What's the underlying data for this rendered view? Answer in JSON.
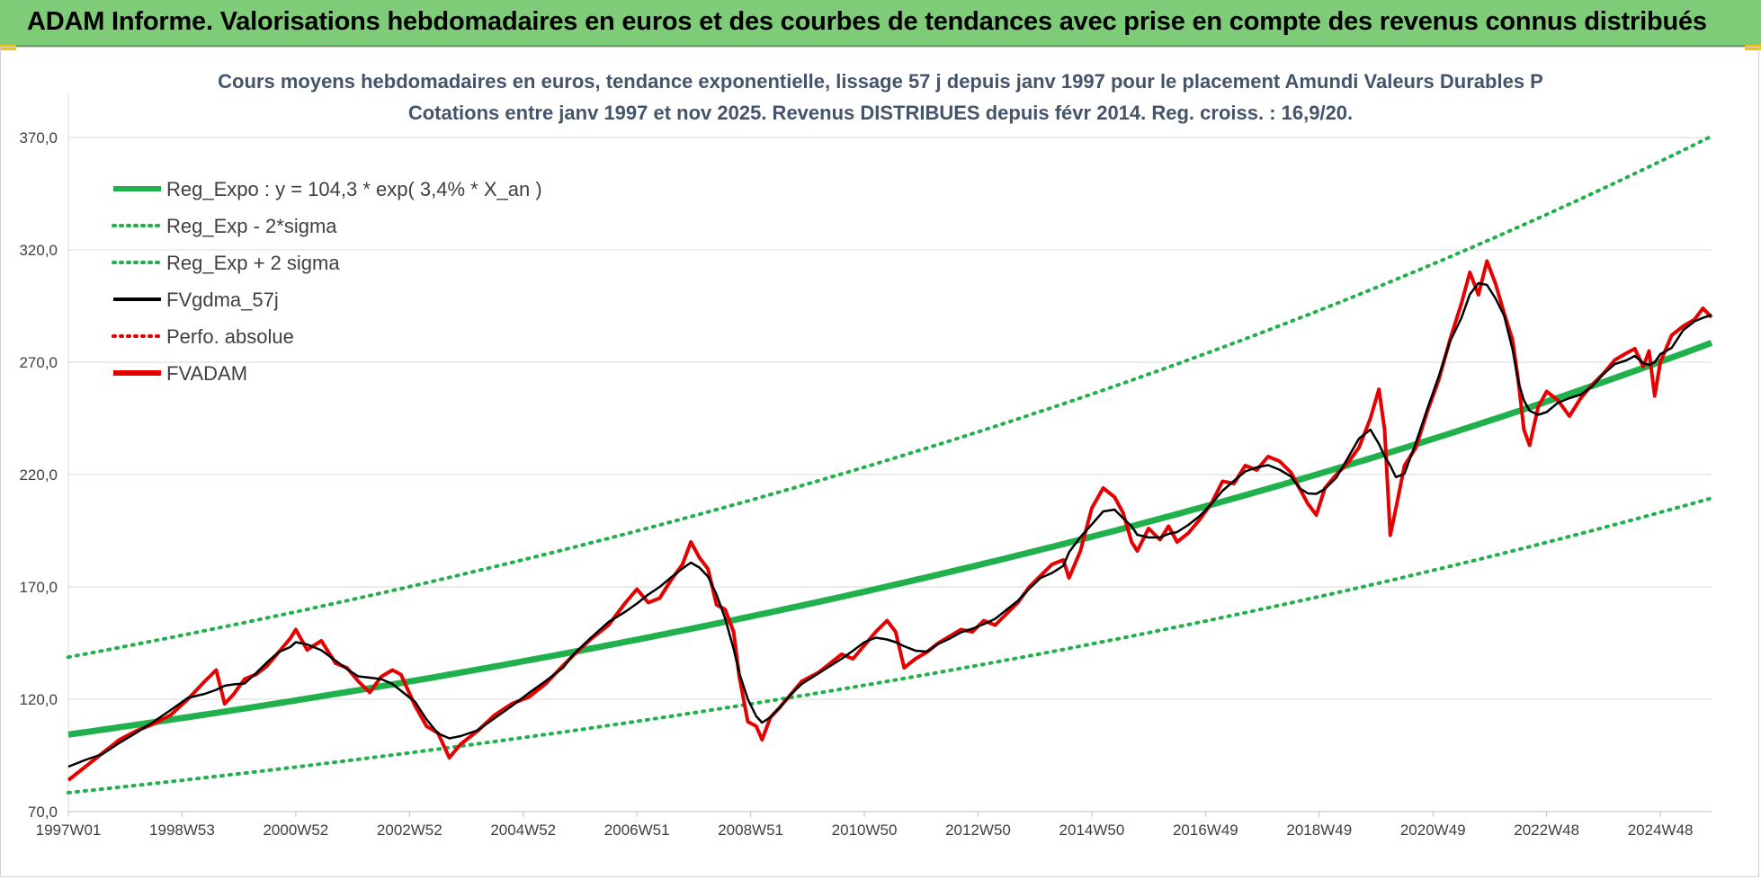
{
  "banner": {
    "title": "ADAM Informe. Valorisations hebdomadaires en euros et des courbes de tendances avec prise en compte des revenus connus distribués"
  },
  "colors": {
    "banner_bg": "#7ecb78",
    "trend": "#21b14c",
    "sigma": "#21b14c",
    "smoothed": "#000000",
    "perf": "#e60000",
    "fvadam": "#e60000",
    "grid": "#d9d9d9"
  },
  "chart_data": {
    "type": "line",
    "title": "Cours moyens hebdomadaires en euros, tendance exponentielle, lissage 57 j depuis janv 1997 pour le placement Amundi Valeurs Durables P",
    "subtitle": "Cotations entre janv 1997 et nov 2025. Revenus DISTRIBUES depuis févr 2014. Reg. croiss. : 16,9/20.",
    "xlabel": "",
    "ylabel": "",
    "x_range": [
      1997.0,
      2025.9
    ],
    "ylim": [
      70,
      390
    ],
    "y_ticks": [
      "70,0",
      "120,0",
      "170,0",
      "220,0",
      "270,0",
      "320,0",
      "370,0"
    ],
    "y_tick_values": [
      70,
      120,
      170,
      220,
      270,
      320,
      370
    ],
    "x_ticks": [
      "1997W01",
      "1998W53",
      "2000W52",
      "2002W52",
      "2004W52",
      "2006W51",
      "2008W51",
      "2010W50",
      "2012W50",
      "2014W50",
      "2016W49",
      "2018W49",
      "2020W49",
      "2022W48",
      "2024W48"
    ],
    "x_tick_values": [
      1997.0,
      1999.0,
      2001.0,
      2003.0,
      2005.0,
      2007.0,
      2009.0,
      2011.0,
      2013.0,
      2015.0,
      2017.0,
      2019.0,
      2021.0,
      2023.0,
      2025.0
    ],
    "grid": true,
    "legend_position": "top-left",
    "regression": {
      "a": 104.3,
      "rate": 0.034,
      "sigma_factor": 1.33
    },
    "legend": [
      {
        "label": "Reg_Expo : y = 104,3 * exp( 3,4% *  X_an )",
        "style": "solid-thick",
        "color": "#21b14c"
      },
      {
        "label": "Reg_Exp - 2*sigma",
        "style": "dotted",
        "color": "#21b14c"
      },
      {
        "label": "Reg_Exp + 2 sigma",
        "style": "dotted",
        "color": "#21b14c"
      },
      {
        "label": "FVgdma_57j",
        "style": "solid",
        "color": "#000000"
      },
      {
        "label": "Perfo. absolue",
        "style": "dotted",
        "color": "#e60000"
      },
      {
        "label": "FVADAM",
        "style": "solid-thick",
        "color": "#e60000"
      }
    ],
    "series": [
      {
        "name": "FVADAM",
        "points": [
          [
            1997.0,
            84
          ],
          [
            1997.3,
            90
          ],
          [
            1997.6,
            96
          ],
          [
            1997.9,
            102
          ],
          [
            1998.2,
            106
          ],
          [
            1998.5,
            109
          ],
          [
            1998.8,
            113
          ],
          [
            1999.1,
            120
          ],
          [
            1999.4,
            128
          ],
          [
            1999.6,
            133
          ],
          [
            1999.75,
            118
          ],
          [
            1999.9,
            122
          ],
          [
            2000.1,
            129
          ],
          [
            2000.3,
            131
          ],
          [
            2000.5,
            135
          ],
          [
            2000.7,
            141
          ],
          [
            2000.9,
            147
          ],
          [
            2001.0,
            151
          ],
          [
            2001.2,
            142
          ],
          [
            2001.45,
            146
          ],
          [
            2001.7,
            136
          ],
          [
            2001.9,
            134
          ],
          [
            2002.1,
            128
          ],
          [
            2002.3,
            123
          ],
          [
            2002.5,
            130
          ],
          [
            2002.7,
            133
          ],
          [
            2002.85,
            131
          ],
          [
            2003.1,
            117
          ],
          [
            2003.3,
            108
          ],
          [
            2003.5,
            105
          ],
          [
            2003.7,
            94
          ],
          [
            2003.9,
            100
          ],
          [
            2004.2,
            106
          ],
          [
            2004.5,
            113
          ],
          [
            2004.8,
            118
          ],
          [
            2005.1,
            121
          ],
          [
            2005.4,
            127
          ],
          [
            2005.7,
            135
          ],
          [
            2005.9,
            140
          ],
          [
            2006.2,
            147
          ],
          [
            2006.5,
            153
          ],
          [
            2006.8,
            163
          ],
          [
            2007.0,
            169
          ],
          [
            2007.2,
            163
          ],
          [
            2007.4,
            165
          ],
          [
            2007.6,
            173
          ],
          [
            2007.8,
            180
          ],
          [
            2007.95,
            190
          ],
          [
            2008.1,
            183
          ],
          [
            2008.25,
            178
          ],
          [
            2008.4,
            162
          ],
          [
            2008.55,
            160
          ],
          [
            2008.7,
            150
          ],
          [
            2008.8,
            130
          ],
          [
            2008.95,
            110
          ],
          [
            2009.1,
            108
          ],
          [
            2009.2,
            102
          ],
          [
            2009.35,
            112
          ],
          [
            2009.5,
            116
          ],
          [
            2009.7,
            122
          ],
          [
            2009.9,
            128
          ],
          [
            2010.2,
            132
          ],
          [
            2010.4,
            136
          ],
          [
            2010.6,
            140
          ],
          [
            2010.8,
            138
          ],
          [
            2011.0,
            144
          ],
          [
            2011.2,
            150
          ],
          [
            2011.4,
            155
          ],
          [
            2011.55,
            150
          ],
          [
            2011.7,
            134
          ],
          [
            2011.9,
            138
          ],
          [
            2012.1,
            141
          ],
          [
            2012.3,
            145
          ],
          [
            2012.5,
            148
          ],
          [
            2012.7,
            151
          ],
          [
            2012.9,
            150
          ],
          [
            2013.1,
            155
          ],
          [
            2013.3,
            153
          ],
          [
            2013.5,
            158
          ],
          [
            2013.7,
            163
          ],
          [
            2013.9,
            170
          ],
          [
            2014.1,
            175
          ],
          [
            2014.3,
            180
          ],
          [
            2014.5,
            182
          ],
          [
            2014.6,
            174
          ],
          [
            2014.8,
            186
          ],
          [
            2015.0,
            205
          ],
          [
            2015.2,
            214
          ],
          [
            2015.4,
            210
          ],
          [
            2015.55,
            203
          ],
          [
            2015.7,
            190
          ],
          [
            2015.8,
            186
          ],
          [
            2016.0,
            196
          ],
          [
            2016.2,
            191
          ],
          [
            2016.35,
            197
          ],
          [
            2016.5,
            190
          ],
          [
            2016.7,
            194
          ],
          [
            2016.9,
            200
          ],
          [
            2017.1,
            207
          ],
          [
            2017.3,
            217
          ],
          [
            2017.5,
            216
          ],
          [
            2017.7,
            224
          ],
          [
            2017.9,
            222
          ],
          [
            2018.1,
            228
          ],
          [
            2018.3,
            226
          ],
          [
            2018.5,
            221
          ],
          [
            2018.65,
            214
          ],
          [
            2018.8,
            207
          ],
          [
            2018.95,
            202
          ],
          [
            2019.1,
            214
          ],
          [
            2019.3,
            220
          ],
          [
            2019.5,
            225
          ],
          [
            2019.7,
            232
          ],
          [
            2019.9,
            245
          ],
          [
            2020.05,
            258
          ],
          [
            2020.15,
            240
          ],
          [
            2020.25,
            193
          ],
          [
            2020.35,
            205
          ],
          [
            2020.5,
            224
          ],
          [
            2020.7,
            232
          ],
          [
            2020.9,
            248
          ],
          [
            2021.1,
            262
          ],
          [
            2021.3,
            280
          ],
          [
            2021.5,
            296
          ],
          [
            2021.65,
            310
          ],
          [
            2021.8,
            300
          ],
          [
            2021.95,
            315
          ],
          [
            2022.1,
            305
          ],
          [
            2022.25,
            292
          ],
          [
            2022.4,
            280
          ],
          [
            2022.5,
            262
          ],
          [
            2022.6,
            240
          ],
          [
            2022.7,
            233
          ],
          [
            2022.85,
            250
          ],
          [
            2023.0,
            257
          ],
          [
            2023.2,
            253
          ],
          [
            2023.4,
            246
          ],
          [
            2023.6,
            254
          ],
          [
            2023.8,
            260
          ],
          [
            2024.0,
            265
          ],
          [
            2024.2,
            271
          ],
          [
            2024.4,
            274
          ],
          [
            2024.55,
            276
          ],
          [
            2024.7,
            268
          ],
          [
            2024.8,
            275
          ],
          [
            2024.9,
            255
          ],
          [
            2025.0,
            270
          ],
          [
            2025.2,
            282
          ],
          [
            2025.4,
            286
          ],
          [
            2025.6,
            289
          ],
          [
            2025.75,
            294
          ],
          [
            2025.9,
            290
          ]
        ]
      }
    ]
  }
}
